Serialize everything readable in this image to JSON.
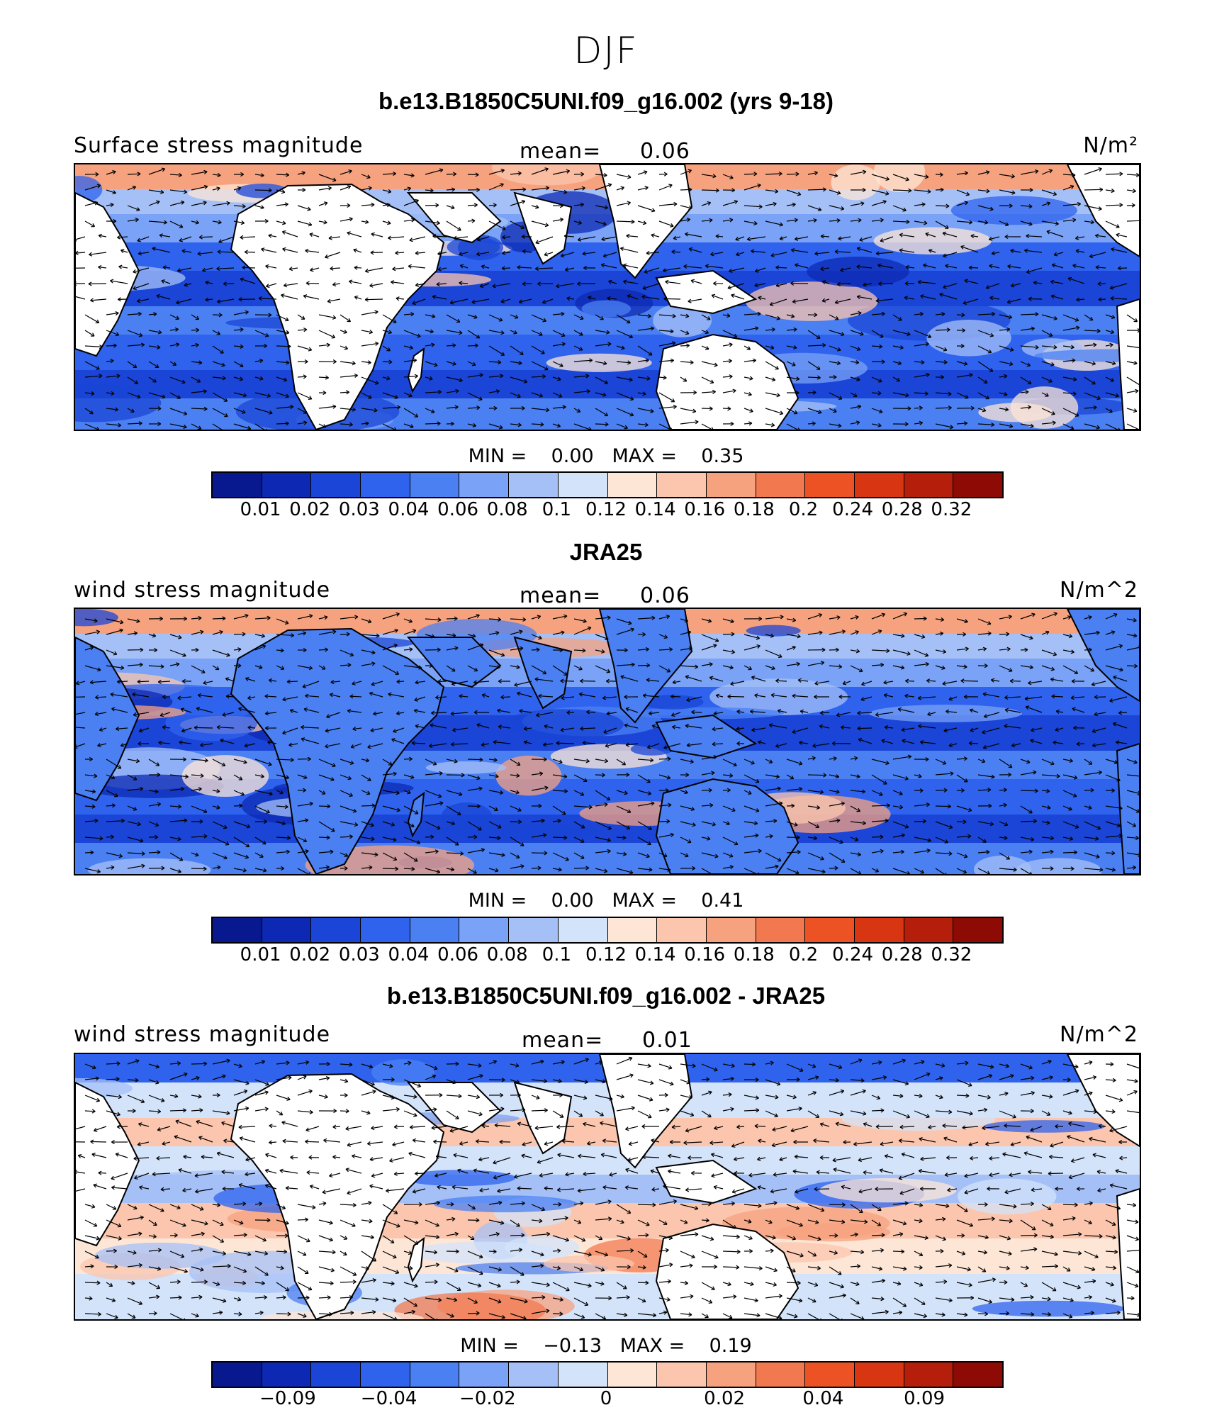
{
  "season": "DJF",
  "colorscale": [
    "#08188f",
    "#0d29b3",
    "#1a45d6",
    "#2f63ee",
    "#4b80f3",
    "#7aa2f6",
    "#a5c0f7",
    "#d3e3fa",
    "#fde6d6",
    "#fbc6ad",
    "#f7a27f",
    "#f2794f",
    "#ec5224",
    "#d83512",
    "#b41e0a",
    "#8e0a05"
  ],
  "panels": [
    {
      "title": "b.e13.B1850C5UNI.f09_g16.002 (yrs 9-18)",
      "left_label": "Surface stress magnitude",
      "mean_label": "mean=",
      "mean_value": "0.06",
      "units": "N/m²",
      "land": "white",
      "min_label": "MIN =",
      "min_value": "0.00",
      "max_label": "MAX =",
      "max_value": "0.35",
      "ticks": [
        "0.01",
        "0.02",
        "0.03",
        "0.04",
        "0.06",
        "0.08",
        "0.1",
        "0.12",
        "0.14",
        "0.16",
        "0.18",
        "0.2",
        "0.24",
        "0.28",
        "0.32"
      ]
    },
    {
      "title": "JRA25",
      "left_label": "wind stress magnitude",
      "mean_label": "mean=",
      "mean_value": "0.06",
      "units": "N/m^2",
      "land": "filled",
      "min_label": "MIN =",
      "min_value": "0.00",
      "max_label": "MAX =",
      "max_value": "0.41",
      "ticks": [
        "0.01",
        "0.02",
        "0.03",
        "0.04",
        "0.06",
        "0.08",
        "0.1",
        "0.12",
        "0.14",
        "0.16",
        "0.18",
        "0.2",
        "0.24",
        "0.28",
        "0.32"
      ]
    },
    {
      "title": "b.e13.B1850C5UNI.f09_g16.002 - JRA25",
      "left_label": "wind stress magnitude",
      "mean_label": "mean=",
      "mean_value": "0.01",
      "units": "N/m^2",
      "land": "white",
      "min_label": "MIN =",
      "min_value": "−0.13",
      "max_label": "MAX =",
      "max_value": "0.19",
      "ticks": [
        "−0.09",
        "−0.04",
        "−0.02",
        "0",
        "0.02",
        "0.04",
        "0.09"
      ]
    }
  ]
}
